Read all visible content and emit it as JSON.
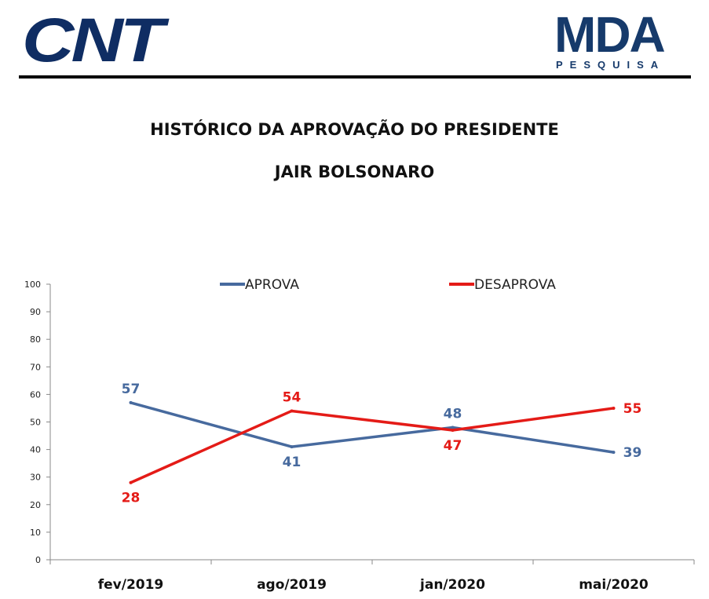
{
  "header": {
    "left_logo": "CNT",
    "right_logo": "MDA",
    "right_logo_sub": "PESQUISA"
  },
  "colors": {
    "aprova": "#476a9e",
    "desaprova": "#e41b17",
    "brand": "#0f2d63"
  },
  "chart_data": {
    "type": "line",
    "title": "HISTÓRICO DA APROVAÇÃO DO PRESIDENTE",
    "subtitle": "JAIR BOLSONARO",
    "categories": [
      "fev/2019",
      "ago/2019",
      "jan/2020",
      "mai/2020"
    ],
    "ylim": [
      0,
      100
    ],
    "yticks": [
      0,
      10,
      20,
      30,
      40,
      50,
      60,
      70,
      80,
      90,
      100
    ],
    "grid": false,
    "legend_position": "top",
    "series": [
      {
        "name": "APROVA",
        "values": [
          57,
          41,
          48,
          39
        ],
        "color": "#476a9e"
      },
      {
        "name": "DESAPROVA",
        "values": [
          28,
          54,
          47,
          55
        ],
        "color": "#e41b17"
      }
    ]
  }
}
